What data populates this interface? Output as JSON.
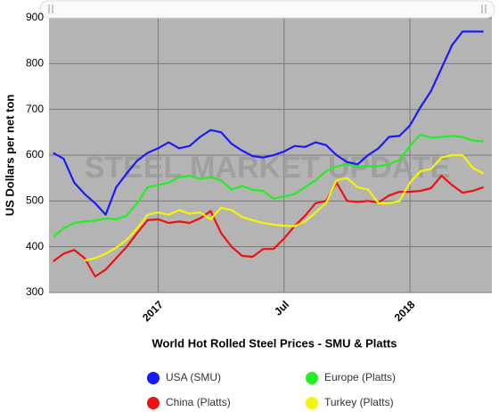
{
  "chart_data": {
    "type": "line",
    "title": "World Hot Rolled Steel Prices - SMU & Platts",
    "y_label": "US Dollars per net ton",
    "watermark": "STEEL MARKET UPDATE",
    "x": [
      -5,
      -4.5,
      -4,
      -3.5,
      -3,
      -2.5,
      -2,
      -1.5,
      -1,
      -0.5,
      0,
      0.5,
      1,
      1.5,
      2,
      2.5,
      3,
      3.5,
      4,
      4.5,
      5,
      5.5,
      6,
      6.5,
      7,
      7.5,
      8,
      8.5,
      9,
      9.5,
      10,
      10.5,
      11,
      11.5,
      12,
      12.5,
      13,
      13.5,
      14,
      14.5,
      15,
      15.5
    ],
    "xlim": [
      -5.2,
      15.9
    ],
    "xticks": [
      {
        "value": 0,
        "label": "2017"
      },
      {
        "value": 6,
        "label": "Jul"
      },
      {
        "value": 12,
        "label": "2018"
      }
    ],
    "ylim": [
      300,
      900
    ],
    "yticks": [
      300,
      400,
      500,
      600,
      700,
      800,
      900
    ],
    "grid": true,
    "series": [
      {
        "name": "USA (SMU)",
        "color": "#1a1aff",
        "values": [
          605,
          592,
          540,
          515,
          495,
          470,
          530,
          560,
          588,
          605,
          615,
          628,
          615,
          620,
          640,
          655,
          650,
          625,
          610,
          598,
          595,
          600,
          608,
          620,
          618,
          628,
          622,
          600,
          585,
          580,
          600,
          615,
          640,
          642,
          665,
          705,
          740,
          790,
          840,
          870,
          870,
          870
        ]
      },
      {
        "name": "Europe (Platts)",
        "color": "#22ee22",
        "values": [
          422,
          440,
          452,
          455,
          457,
          462,
          460,
          468,
          495,
          530,
          535,
          540,
          552,
          555,
          548,
          552,
          545,
          525,
          533,
          524,
          522,
          505,
          510,
          515,
          530,
          545,
          565,
          575,
          580,
          575,
          576,
          576,
          580,
          590,
          620,
          645,
          638,
          640,
          642,
          640,
          632,
          630
        ]
      },
      {
        "name": "China (Platts)",
        "color": "#ee1111",
        "values": [
          368,
          385,
          393,
          375,
          335,
          350,
          375,
          400,
          430,
          458,
          460,
          452,
          455,
          452,
          462,
          478,
          430,
          400,
          380,
          378,
          395,
          395,
          418,
          445,
          468,
          495,
          500,
          540,
          500,
          498,
          500,
          497,
          512,
          520,
          520,
          522,
          528,
          555,
          535,
          518,
          522,
          530
        ]
      },
      {
        "name": "Turkey (Platts)",
        "color": "#f5f500",
        "values": [
          null,
          null,
          null,
          370,
          375,
          385,
          398,
          415,
          440,
          470,
          475,
          470,
          480,
          472,
          475,
          460,
          485,
          480,
          465,
          458,
          452,
          448,
          446,
          445,
          455,
          475,
          495,
          545,
          550,
          530,
          525,
          495,
          495,
          500,
          540,
          565,
          570,
          595,
          600,
          600,
          572,
          560
        ]
      }
    ]
  }
}
